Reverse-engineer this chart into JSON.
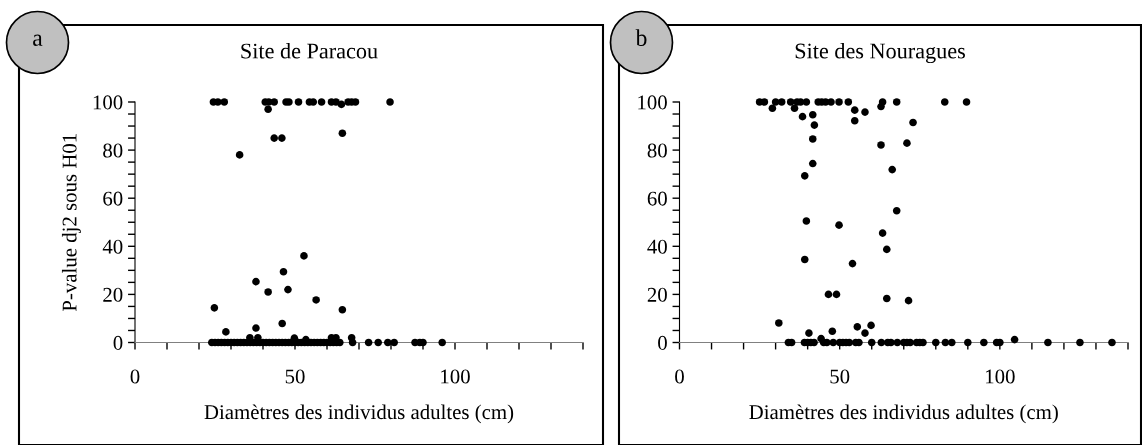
{
  "chart_data": [
    {
      "type": "scatter",
      "title": "Site de Paracou",
      "xlabel": "Diamètres des individus adultes (cm)",
      "ylabel": "P-value dj2 sous H01",
      "annotations": [
        "a"
      ],
      "series": [
        {
          "color": "#000000",
          "x": [
            24.5,
            25.9,
            27.9,
            40.7,
            41.8,
            43.5,
            47.2,
            48.1,
            51.1,
            54.5,
            55.7,
            58.3,
            61.4,
            62.8,
            66.6,
            67.7,
            68.9,
            79.7,
            41.6,
            64.5,
            43.5,
            45.9,
            64.8,
            32.7,
            52.8,
            46.4,
            37.8,
            41.6,
            47.8,
            56.6,
            24.8,
            64.8,
            46,
            37.8,
            28.4,
            35.9,
            38.4,
            49.8,
            53.4,
            61.4,
            62.8,
            67.7,
            24,
            25,
            26,
            27,
            28,
            29,
            30,
            31,
            32,
            33,
            34,
            35,
            36,
            37,
            38,
            39,
            40,
            41,
            42,
            43,
            44,
            45,
            46,
            47,
            48,
            49,
            50,
            51,
            52,
            53,
            54,
            55,
            56,
            57,
            58,
            59,
            60,
            61,
            62,
            63,
            64,
            68,
            73,
            76,
            79,
            81,
            87.5,
            89,
            90,
            96
          ],
          "values": [
            100,
            100,
            100,
            100,
            100,
            100,
            100,
            100,
            100,
            100,
            100,
            100,
            100,
            100,
            100,
            100,
            100,
            100,
            97,
            99,
            85,
            85,
            87,
            78,
            36,
            29.4,
            25.3,
            21,
            22,
            17.7,
            14.4,
            13.6,
            7.9,
            6,
            4.4,
            2,
            2,
            1.8,
            1.2,
            2,
            2,
            2,
            0,
            0,
            0,
            0,
            0,
            0,
            0,
            0,
            0,
            0,
            0,
            0,
            0,
            0,
            0,
            0,
            0,
            0,
            0,
            0,
            0,
            0,
            0,
            0,
            0,
            0,
            0,
            0,
            0,
            0,
            0,
            0,
            0,
            0,
            0,
            0,
            0,
            0,
            0,
            0,
            0,
            0,
            0,
            0,
            0,
            0,
            0,
            0,
            0,
            0
          ]
        }
      ],
      "xlim": [
        0,
        140
      ],
      "ylim": [
        0,
        100
      ],
      "xticks": [
        0,
        {
          "value": 10,
          "label": null
        },
        {
          "value": 20,
          "label": null
        },
        {
          "value": 30,
          "label": null
        },
        {
          "value": 40,
          "label": null
        },
        50,
        {
          "value": 60,
          "label": null
        },
        {
          "value": 70,
          "label": null
        },
        {
          "value": 80,
          "label": null
        },
        {
          "value": 90,
          "label": null
        },
        100,
        {
          "value": 110,
          "label": null
        },
        {
          "value": 120,
          "label": null
        },
        {
          "value": 130,
          "label": null
        },
        {
          "value": 140,
          "label": null
        }
      ],
      "yticks": [
        0,
        {
          "value": 5,
          "label": null
        },
        {
          "value": 10,
          "label": null
        },
        {
          "value": 15,
          "label": null
        },
        20,
        {
          "value": 25,
          "label": null
        },
        {
          "value": 30,
          "label": null
        },
        {
          "value": 35,
          "label": null
        },
        40,
        {
          "value": 45,
          "label": null
        },
        {
          "value": 50,
          "label": null
        },
        {
          "value": 55,
          "label": null
        },
        60,
        {
          "value": 65,
          "label": null
        },
        {
          "value": 70,
          "label": null
        },
        {
          "value": 75,
          "label": null
        },
        80,
        {
          "value": 85,
          "label": null
        },
        {
          "value": 90,
          "label": null
        },
        {
          "value": 95,
          "label": null
        },
        100
      ],
      "marker": "circle"
    },
    {
      "type": "scatter",
      "title": "Site des Nouragues",
      "xlabel": "Diamètres des individus adultes (cm)",
      "annotations": [
        "b"
      ],
      "series": [
        {
          "color": "#000000",
          "x": [
            25,
            26.5,
            30,
            31.9,
            34.7,
            36.7,
            37.8,
            39.6,
            43.3,
            44.4,
            45.6,
            47.3,
            49.8,
            52.7,
            63.4,
            67.8,
            82.8,
            89.6,
            29,
            35.9,
            38.4,
            41.6,
            42.1,
            54.7,
            57.9,
            54.7,
            62.9,
            72.9,
            41.6,
            62.9,
            71,
            41.6,
            39.1,
            66.4,
            67.8,
            39.6,
            49.8,
            63.4,
            64.7,
            39.1,
            54,
            46.5,
            49,
            64.7,
            71.5,
            31,
            59.8,
            55.5,
            47.7,
            57.9,
            40.4,
            104.6,
            44.2,
            34,
            35,
            39,
            40,
            41,
            42,
            45,
            46,
            48,
            50,
            51,
            52,
            53,
            55,
            56,
            60,
            63,
            65,
            66,
            68,
            70,
            71,
            72,
            74,
            75,
            76,
            80,
            83,
            85,
            90,
            95,
            99,
            100,
            115,
            125,
            135
          ],
          "values": [
            100,
            100,
            100,
            100,
            100,
            100,
            100,
            100,
            100,
            100,
            100,
            100,
            100,
            100,
            100,
            100,
            100,
            100,
            97.4,
            97.4,
            93.9,
            94.7,
            90.4,
            96.6,
            95.8,
            92.2,
            98.1,
            91.5,
            84.6,
            82.1,
            82.9,
            74.4,
            69.3,
            71.9,
            54.8,
            50.5,
            48.8,
            45.5,
            38.7,
            34.5,
            32.8,
            20,
            20,
            18.3,
            17.4,
            8.1,
            7.1,
            6.5,
            4.7,
            3.9,
            3.9,
            1.2,
            1.6,
            0,
            0,
            0,
            0,
            0,
            0,
            0,
            0,
            0,
            0,
            0,
            0,
            0,
            0,
            0,
            0,
            0,
            0,
            0,
            0,
            0,
            0,
            0,
            0,
            0,
            0,
            0,
            0,
            0,
            0,
            0,
            0,
            0,
            0,
            0,
            0
          ]
        }
      ],
      "xlim": [
        0,
        140
      ],
      "ylim": [
        0,
        100
      ],
      "xticks": [
        0,
        {
          "value": 10,
          "label": null
        },
        {
          "value": 20,
          "label": null
        },
        {
          "value": 30,
          "label": null
        },
        {
          "value": 40,
          "label": null
        },
        50,
        {
          "value": 60,
          "label": null
        },
        {
          "value": 70,
          "label": null
        },
        {
          "value": 80,
          "label": null
        },
        {
          "value": 90,
          "label": null
        },
        100,
        {
          "value": 110,
          "label": null
        },
        {
          "value": 120,
          "label": null
        },
        {
          "value": 130,
          "label": null
        },
        {
          "value": 140,
          "label": null
        }
      ],
      "yticks": [
        0,
        {
          "value": 5,
          "label": null
        },
        {
          "value": 10,
          "label": null
        },
        {
          "value": 15,
          "label": null
        },
        20,
        {
          "value": 25,
          "label": null
        },
        {
          "value": 30,
          "label": null
        },
        {
          "value": 35,
          "label": null
        },
        40,
        {
          "value": 45,
          "label": null
        },
        {
          "value": 50,
          "label": null
        },
        {
          "value": 55,
          "label": null
        },
        60,
        {
          "value": 65,
          "label": null
        },
        {
          "value": 70,
          "label": null
        },
        {
          "value": 75,
          "label": null
        },
        80,
        {
          "value": 85,
          "label": null
        },
        {
          "value": 90,
          "label": null
        },
        {
          "value": 95,
          "label": null
        },
        100
      ],
      "marker": "circle"
    }
  ]
}
